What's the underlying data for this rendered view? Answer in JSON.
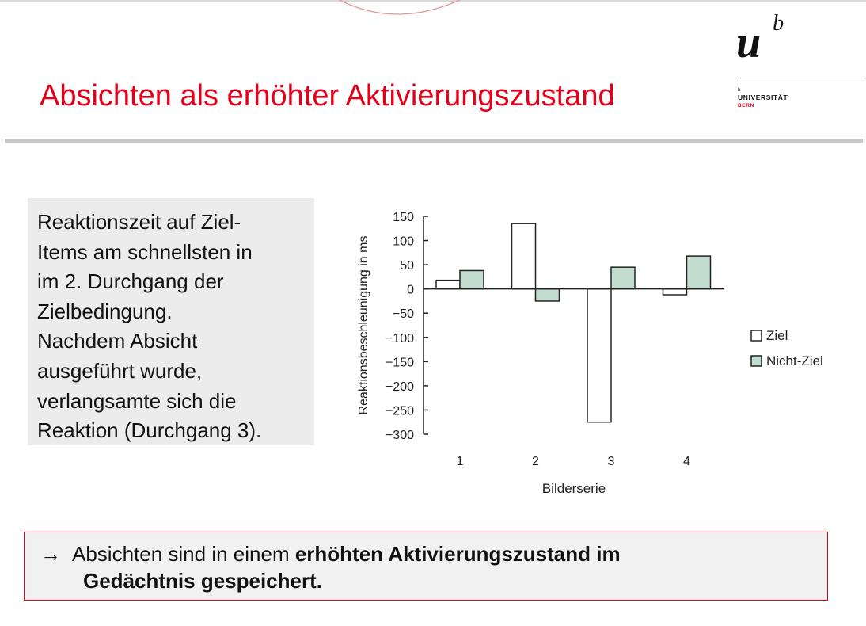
{
  "slide": {
    "title": "Absichten als erhöhter Aktivierungszustand",
    "logo": {
      "letter_u": "u",
      "letter_b": "b",
      "tiny_mark": "b",
      "university": "UNIVERSITÄT",
      "city": "BERN"
    },
    "text_lines": [
      "Reaktionszeit auf Ziel-",
      "Items am schnellsten in",
      "im 2. Durchgang der",
      "Zielbedingung.",
      "Nachdem Absicht",
      "ausgeführt wurde,",
      "verlangsamte sich die",
      "Reaktion (Durchgang 3)."
    ],
    "conclusion": {
      "arrow": "→",
      "plain": "Absichten sind in einem ",
      "bold_1": "erhöhten Aktivierungszustand im",
      "bold_2": "Gedächtnis gespeichert."
    }
  },
  "colors": {
    "title": "#e2001a",
    "ziel_fill": "#ffffff",
    "nicht_ziel_fill": "#c3dcd0",
    "frame": "#e2001a"
  },
  "chart_data": {
    "type": "bar",
    "categories": [
      "1",
      "2",
      "3",
      "4"
    ],
    "series": [
      {
        "name": "Ziel",
        "values": [
          18,
          135,
          -275,
          -12
        ]
      },
      {
        "name": "Nicht-Ziel",
        "values": [
          38,
          -25,
          45,
          68
        ]
      }
    ],
    "xlabel": "Bilderserie",
    "ylabel": "Reaktionsbeschleunigung in ms",
    "ylim": [
      -300,
      150
    ],
    "yticks": [
      150,
      100,
      50,
      0,
      -50,
      -100,
      -150,
      -200,
      -250,
      -300
    ],
    "ytick_labels": [
      "150",
      "100",
      "50",
      "0",
      "−50",
      "−100",
      "−150",
      "−200",
      "−250",
      "−300"
    ],
    "grid": false,
    "legend_placement": "right"
  }
}
